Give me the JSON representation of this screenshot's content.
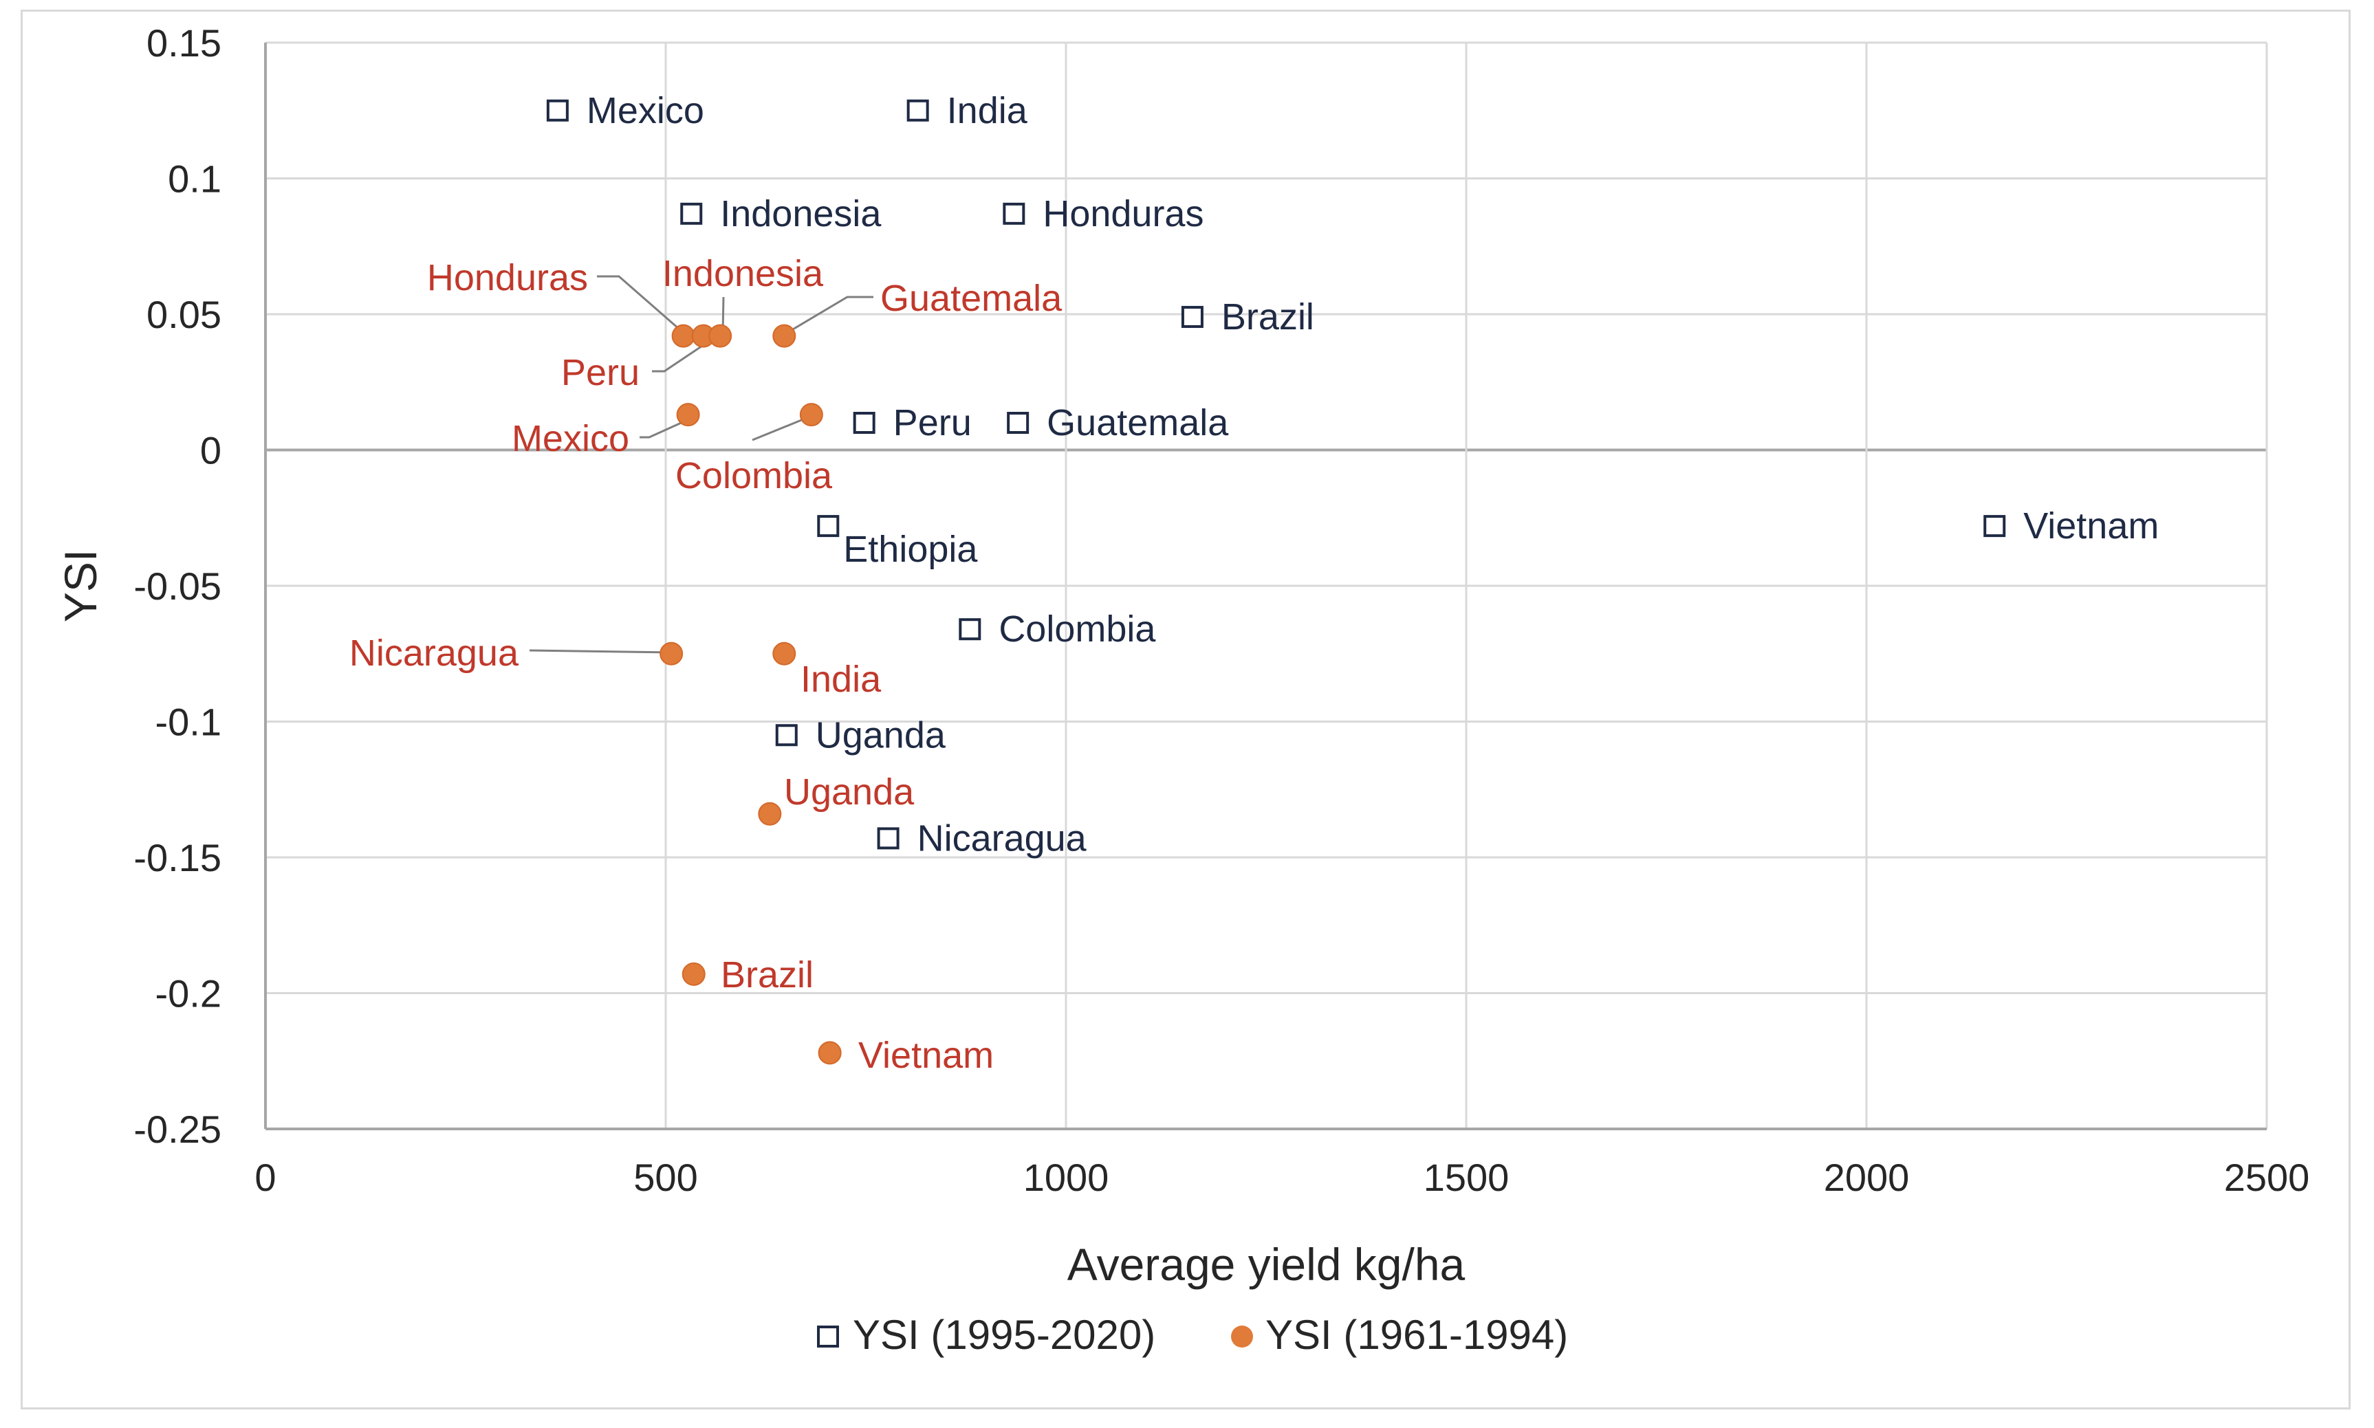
{
  "chart_data": {
    "type": "scatter",
    "title": "",
    "xlabel": "Average yield kg/ha",
    "ylabel": "YSI",
    "xlim": [
      0,
      2500
    ],
    "ylim": [
      -0.25,
      0.15
    ],
    "xticks": [
      0,
      500,
      1000,
      1500,
      2000,
      2500
    ],
    "yticks": [
      0.15,
      0.1,
      0.05,
      0,
      -0.05,
      -0.1,
      -0.15,
      -0.2,
      -0.25
    ],
    "xtick_labels": [
      "0",
      "500",
      "1000",
      "1500",
      "2000",
      "2500"
    ],
    "ytick_labels": [
      "0.15",
      "0.1",
      "0.05",
      "0",
      "-0.05",
      "-0.1",
      "-0.15",
      "-0.2",
      "-0.25"
    ],
    "grid": true,
    "legend_position": "bottom",
    "series": [
      {
        "name": "YSI (1995-2020)",
        "marker": "square",
        "color": "#1f2a44",
        "points": [
          {
            "label": "Mexico",
            "x": 365,
            "y": 0.125
          },
          {
            "label": "India",
            "x": 815,
            "y": 0.125
          },
          {
            "label": "Indonesia",
            "x": 532,
            "y": 0.087
          },
          {
            "label": "Honduras",
            "x": 935,
            "y": 0.087
          },
          {
            "label": "Brazil",
            "x": 1158,
            "y": 0.049
          },
          {
            "label": "Peru",
            "x": 748,
            "y": 0.01
          },
          {
            "label": "Guatemala",
            "x": 940,
            "y": 0.01
          },
          {
            "label": "Ethiopia",
            "x": 703,
            "y": -0.028
          },
          {
            "label": "Vietnam",
            "x": 2160,
            "y": -0.028
          },
          {
            "label": "Colombia",
            "x": 880,
            "y": -0.066
          },
          {
            "label": "Uganda",
            "x": 651,
            "y": -0.105
          },
          {
            "label": "Nicaragua",
            "x": 778,
            "y": -0.143
          }
        ]
      },
      {
        "name": "YSI (1961-1994)",
        "marker": "circle",
        "color": "#e07b39",
        "label_color": "#c0392b",
        "points": [
          {
            "label": "Honduras",
            "x": 522,
            "y": 0.042
          },
          {
            "label": "Peru",
            "x": 547,
            "y": 0.042
          },
          {
            "label": "Indonesia",
            "x": 568,
            "y": 0.042
          },
          {
            "label": "Guatemala",
            "x": 648,
            "y": 0.042
          },
          {
            "label": "Mexico",
            "x": 528,
            "y": 0.013
          },
          {
            "label": "Colombia",
            "x": 682,
            "y": 0.013
          },
          {
            "label": "Nicaragua",
            "x": 507,
            "y": -0.075
          },
          {
            "label": "India",
            "x": 648,
            "y": -0.075
          },
          {
            "label": "Uganda",
            "x": 630,
            "y": -0.134
          },
          {
            "label": "Brazil",
            "x": 535,
            "y": -0.193
          },
          {
            "label": "Vietnam",
            "x": 705,
            "y": -0.222
          }
        ]
      }
    ]
  }
}
